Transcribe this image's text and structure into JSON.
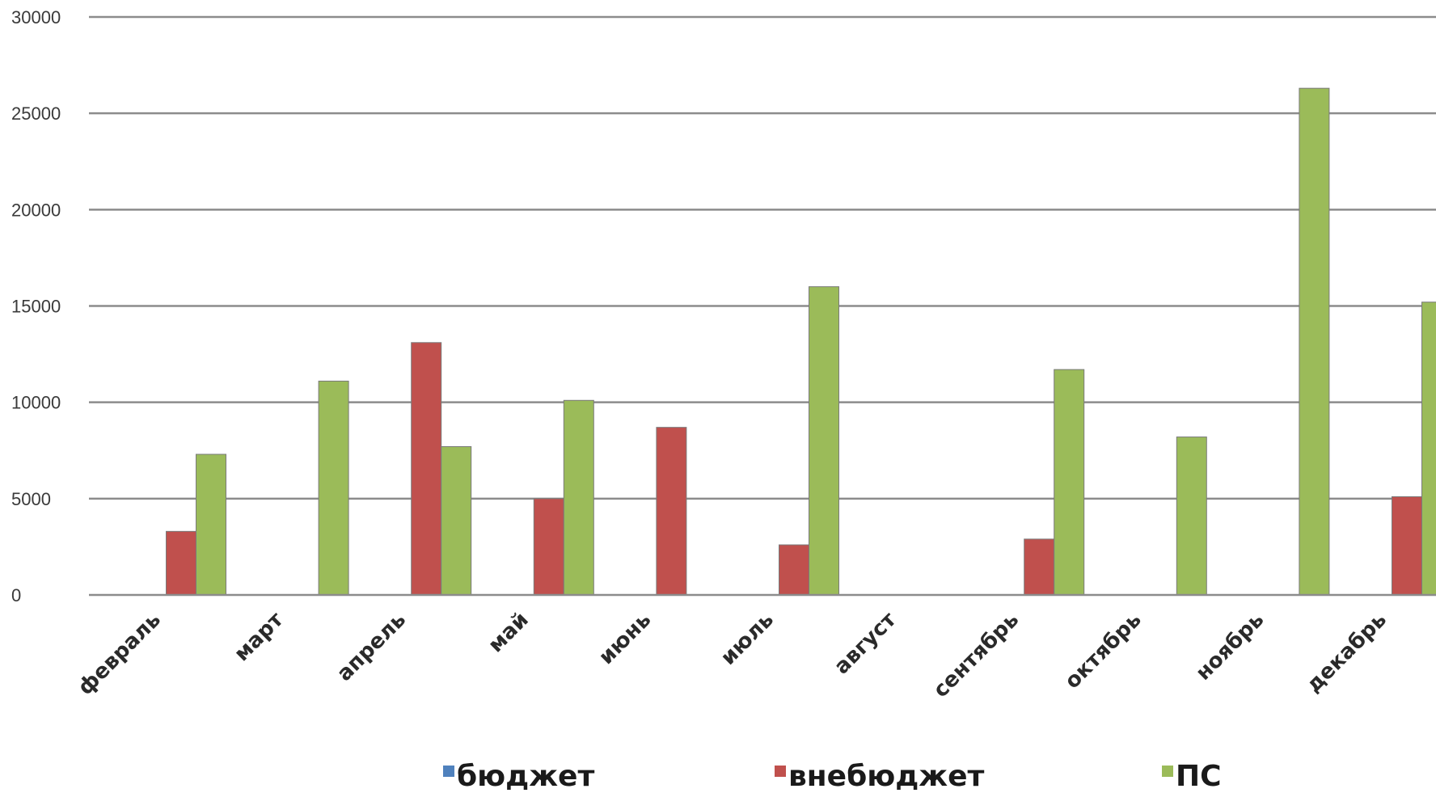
{
  "chart_data": {
    "type": "bar",
    "title": "",
    "xlabel": "",
    "ylabel": "",
    "ylim": [
      0,
      30000
    ],
    "yticks": [
      0,
      5000,
      10000,
      15000,
      20000,
      25000,
      30000
    ],
    "ytick_labels": [
      "0",
      "5000",
      "10000",
      "15000",
      "20000",
      "25000",
      "30000"
    ],
    "grid": true,
    "legend_position": "bottom",
    "categories": [
      "февраль",
      "март",
      "апрель",
      "май",
      "июнь",
      "июль",
      "август",
      "сентябрь",
      "октябрь",
      "ноябрь",
      "декабрь"
    ],
    "series": [
      {
        "name": "бюджет",
        "color": "#4f81bd",
        "values": [
          0,
          0,
          0,
          0,
          0,
          0,
          0,
          0,
          0,
          0,
          0
        ]
      },
      {
        "name": "внебюджет",
        "color": "#c0504d",
        "values": [
          3300,
          0,
          13100,
          5000,
          8700,
          2600,
          0,
          2900,
          0,
          0,
          5100
        ]
      },
      {
        "name": "ПС",
        "color": "#9bbb59",
        "values": [
          7300,
          11100,
          7700,
          10100,
          0,
          16000,
          0,
          11700,
          8200,
          26300,
          15200
        ]
      }
    ]
  }
}
